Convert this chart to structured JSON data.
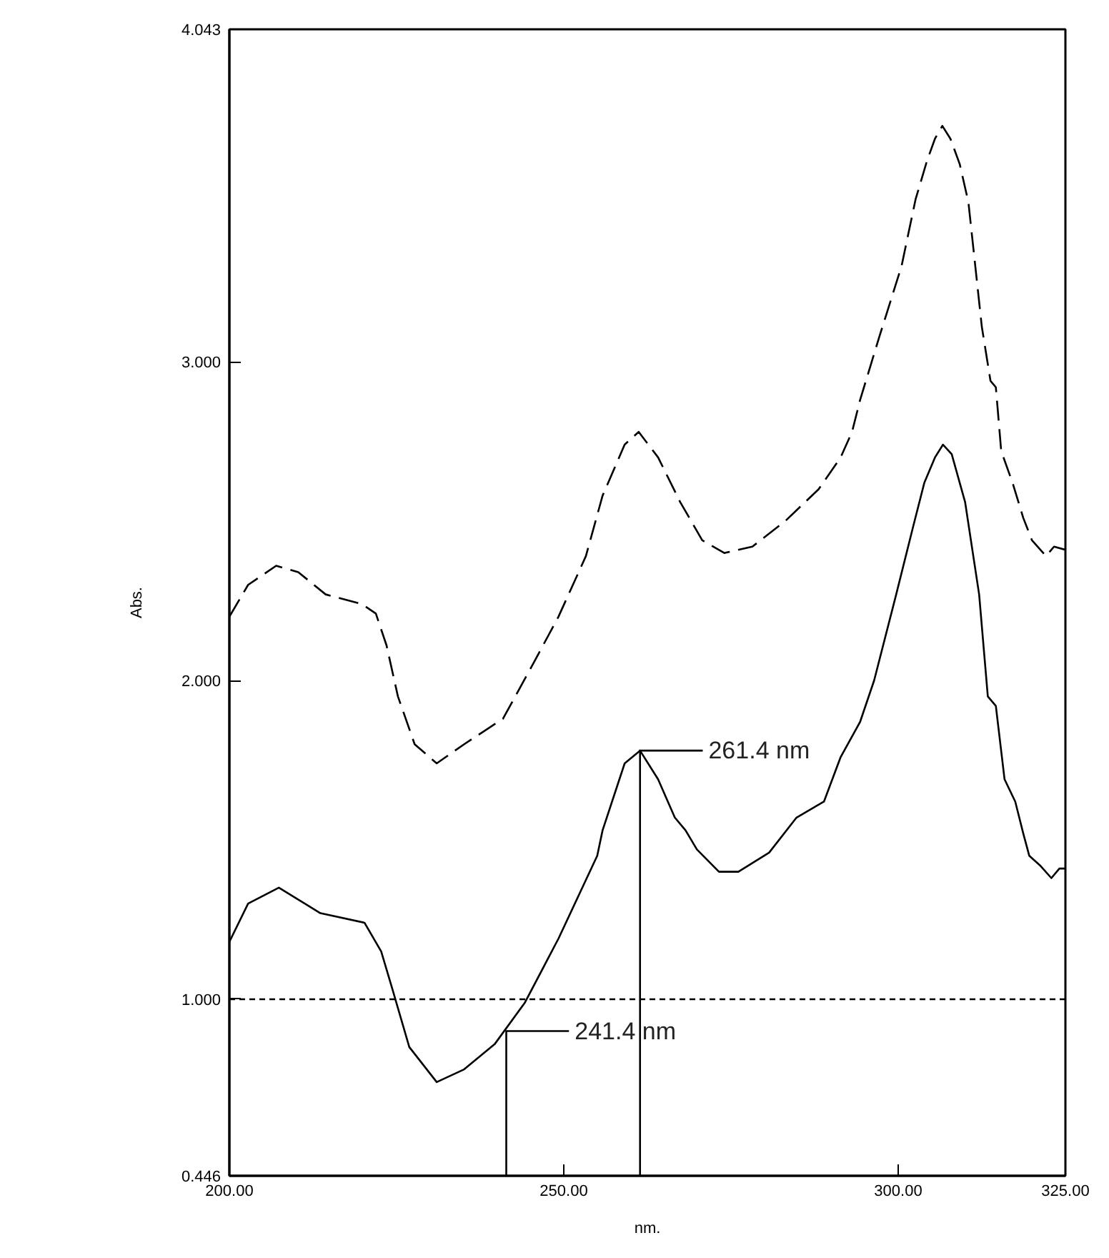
{
  "chart_data": {
    "type": "line",
    "xlabel": "nm.",
    "ylabel": "Abs.",
    "xlim": [
      200,
      325
    ],
    "ylim": [
      0.446,
      4.043
    ],
    "xticks": [
      {
        "value": 200,
        "label": "200.00"
      },
      {
        "value": 250,
        "label": "250.00"
      },
      {
        "value": 300,
        "label": "300.00"
      },
      {
        "value": 325,
        "label": "325.00"
      }
    ],
    "yticks": [
      {
        "value": 0.446,
        "label": "0.446"
      },
      {
        "value": 1,
        "label": "1.000"
      },
      {
        "value": 2,
        "label": "2.000"
      },
      {
        "value": 3,
        "label": "3.000"
      },
      {
        "value": 4.043,
        "label": "4.043"
      }
    ],
    "grid": false,
    "marker": "none",
    "series": [
      {
        "color": "#000000",
        "line_style": "solid",
        "x": [
          200.0,
          202.8,
          207.4,
          213.6,
          220.2,
          222.7,
          224.4,
          226.9,
          231.0,
          235.1,
          239.7,
          244.2,
          249.2,
          255.0,
          255.8,
          259.1,
          261.4,
          264.1,
          266.6,
          268.2,
          269.9,
          273.2,
          276.1,
          280.7,
          284.8,
          288.9,
          291.4,
          294.3,
          296.4,
          299.7,
          302.2,
          303.9,
          305.5,
          306.7,
          308.0,
          310.0,
          312.1,
          313.4,
          314.6,
          315.9,
          317.5,
          318.7,
          319.6,
          321.2,
          322.9,
          324.1,
          325.0
        ],
        "values": [
          1.18,
          1.3,
          1.35,
          1.27,
          1.24,
          1.15,
          1.03,
          0.85,
          0.74,
          0.78,
          0.86,
          0.99,
          1.19,
          1.45,
          1.53,
          1.74,
          1.78,
          1.69,
          1.57,
          1.53,
          1.47,
          1.4,
          1.4,
          1.46,
          1.57,
          1.62,
          1.76,
          1.87,
          2.0,
          2.27,
          2.48,
          2.62,
          2.7,
          2.74,
          2.71,
          2.56,
          2.27,
          1.95,
          1.92,
          1.69,
          1.62,
          1.52,
          1.45,
          1.42,
          1.38,
          1.41,
          1.41
        ]
      },
      {
        "color": "#000000",
        "line_style": "dashed",
        "x": [
          200.0,
          202.8,
          207.0,
          210.3,
          214.4,
          219.8,
          221.9,
          223.5,
          225.2,
          227.7,
          231.0,
          235.1,
          240.9,
          245.1,
          249.2,
          253.3,
          255.8,
          259.1,
          261.2,
          264.1,
          267.4,
          270.7,
          274.0,
          278.2,
          283.1,
          288.1,
          291.4,
          293.1,
          294.3,
          297.2,
          300.5,
          302.6,
          304.3,
          305.5,
          306.6,
          307.8,
          309.2,
          310.5,
          312.5,
          313.8,
          314.6,
          315.4,
          317.1,
          318.7,
          320.0,
          322.1,
          323.3,
          325.0
        ],
        "values": [
          2.2,
          2.3,
          2.36,
          2.34,
          2.27,
          2.24,
          2.21,
          2.11,
          1.95,
          1.8,
          1.74,
          1.8,
          1.88,
          2.04,
          2.2,
          2.39,
          2.58,
          2.74,
          2.78,
          2.7,
          2.56,
          2.44,
          2.4,
          2.42,
          2.5,
          2.6,
          2.7,
          2.78,
          2.88,
          3.08,
          3.3,
          3.51,
          3.63,
          3.7,
          3.74,
          3.7,
          3.62,
          3.5,
          3.11,
          2.94,
          2.92,
          2.72,
          2.62,
          2.51,
          2.44,
          2.39,
          2.42,
          2.41
        ]
      }
    ],
    "ref_lines": [
      {
        "axis": "y",
        "value": 1,
        "color": "#000000",
        "line_style": "dashed"
      }
    ],
    "annotations": [
      {
        "text": "261.4 nm",
        "x": 261.4,
        "y": 1.78
      },
      {
        "text": "241.4 nm",
        "x": 241.4,
        "y": 0.9
      }
    ]
  }
}
